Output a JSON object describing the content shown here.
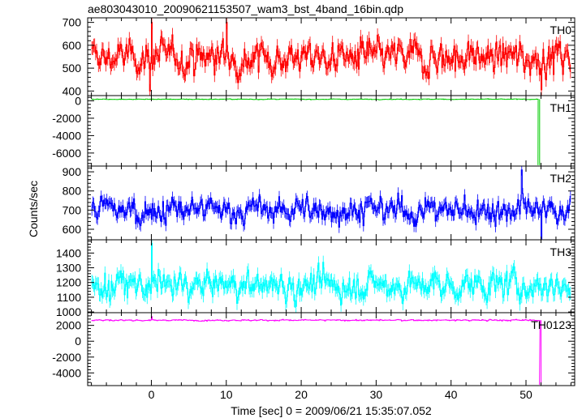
{
  "chart_data": {
    "type": "line",
    "title": "ae803043010_20090621153507_wam3_bst_4band_16bin.qdp",
    "xlabel": "Time [sec] 0 = 2009/06/21 15:35:07.052",
    "ylabel": "Counts/sec",
    "xlim": [
      -8.5,
      56.5
    ],
    "x_ticks": [
      0,
      10,
      20,
      30,
      40,
      50
    ],
    "grid": false,
    "panels": [
      {
        "name": "TH0",
        "color": "#ff0000",
        "ylim": [
          380,
          720
        ],
        "y_ticks": [
          400,
          500,
          600,
          700
        ],
        "mean": 548,
        "noise": 50,
        "err": 30,
        "spikes": [
          {
            "x": 0.0,
            "y": 700
          },
          {
            "x": -0.2,
            "y": 400
          },
          {
            "x": 10.0,
            "y": 700
          },
          {
            "x": 52.0,
            "y": 405
          }
        ],
        "drop": null
      },
      {
        "name": "TH1",
        "color": "#00cc00",
        "ylim": [
          -7500,
          600
        ],
        "y_ticks": [
          -6000,
          -4000,
          -2000,
          0
        ],
        "mean": 180,
        "noise": 25,
        "err": 15,
        "spikes": [],
        "drop": {
          "x": 51.6,
          "y": -7400
        }
      },
      {
        "name": "TH2",
        "color": "#0000ff",
        "ylim": [
          545,
          930
        ],
        "y_ticks": [
          600,
          700,
          800,
          900
        ],
        "mean": 700,
        "noise": 48,
        "err": 30,
        "spikes": [
          {
            "x": 49.4,
            "y": 910
          },
          {
            "x": 52.0,
            "y": 550
          }
        ],
        "drop": null
      },
      {
        "name": "TH3",
        "color": "#00ffff",
        "ylim": [
          995,
          1490
        ],
        "y_ticks": [
          1000,
          1100,
          1200,
          1300,
          1400
        ],
        "mean": 1180,
        "noise": 65,
        "err": 45,
        "spikes": [
          {
            "x": 0.0,
            "y": 1465
          }
        ],
        "drop": null
      },
      {
        "name": "TH0123",
        "color": "#ff00ff",
        "ylim": [
          -5600,
          3600
        ],
        "y_ticks": [
          -4000,
          -2000,
          0,
          2000
        ],
        "mean": 2650,
        "noise": 60,
        "err": 40,
        "spikes": [
          {
            "x": 0.0,
            "y": 3100
          }
        ],
        "drop": {
          "x": 51.8,
          "y": -5500
        }
      }
    ]
  }
}
